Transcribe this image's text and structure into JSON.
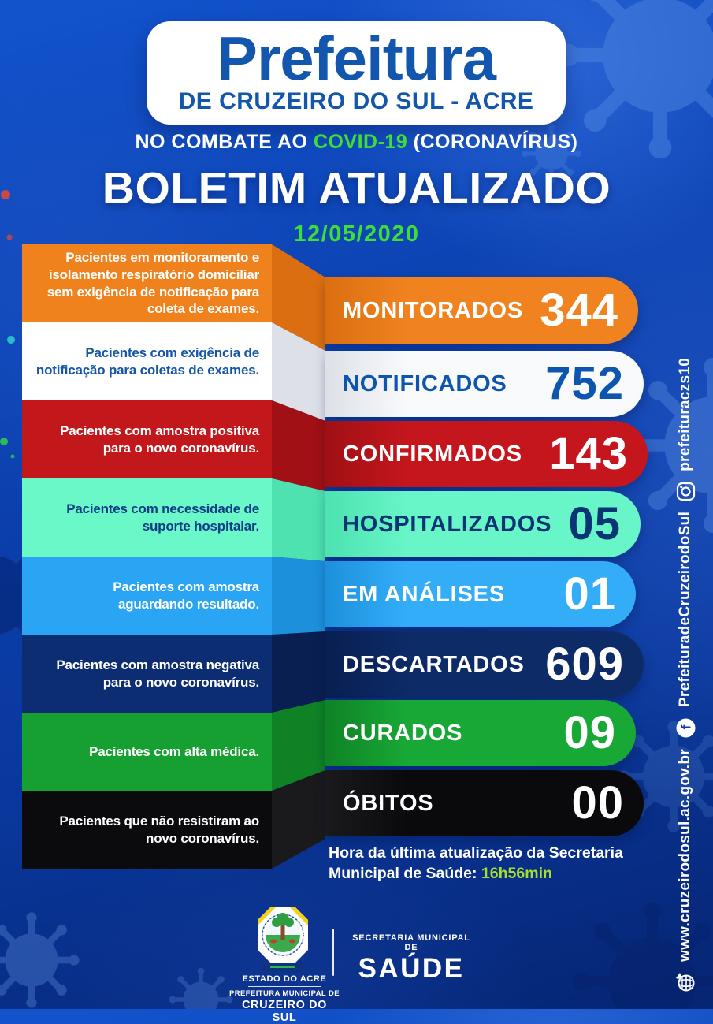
{
  "header": {
    "title": "Prefeitura",
    "subtitle": "DE CRUZEIRO DO SUL - ACRE",
    "tagline_prefix": "NO COMBATE AO ",
    "tagline_highlight": "COVID-19",
    "tagline_suffix": " (CORONAVÍRUS)",
    "bulletin_title": "BOLETIM ATUALIZADO",
    "date": "12/05/2020"
  },
  "rows": [
    {
      "description": "Pacientes em monitoramento e isolamento respiratório domiciliar sem exigência de notificação para coleta de exames.",
      "label": "MONITORADOS",
      "value": "344",
      "box_bg": "#F0821E",
      "box_text": "#FFFFFF",
      "fold_bg": "#DB6E10",
      "pill_bg": "#F0831F",
      "pill_text": "#FFFFFF"
    },
    {
      "description": "Pacientes com exigência de notificação para coletas de exames.",
      "label": "NOTIFICADOS",
      "value": "752",
      "box_bg": "#FFFFFF",
      "box_text": "#1456A8",
      "fold_bg": "#DDE1E7",
      "pill_bg": "#F9FAFC",
      "pill_text": "#0D55AF"
    },
    {
      "description": "Pacientes com amostra positiva para o novo coronavírus.",
      "label": "CONFIRMADOS",
      "value": "143",
      "box_bg": "#C2171B",
      "box_text": "#FFFFFF",
      "fold_bg": "#A01014",
      "pill_bg": "#C5161D",
      "pill_text": "#FFFFFF"
    },
    {
      "description": "Pacientes com necessidade de suporte hospitalar.",
      "label": "HOSPITALIZADOS",
      "value": "05",
      "box_bg": "#6BF8C9",
      "box_text": "#0B3C86",
      "fold_bg": "#4DE2B0",
      "pill_bg": "#68F5C7",
      "pill_text": "#0A3575"
    },
    {
      "description": "Pacientes com amostra aguardando resultado.",
      "label": "EM ANÁLISES",
      "value": "01",
      "box_bg": "#2AA5F3",
      "box_text": "#FFFFFF",
      "fold_bg": "#1D90DC",
      "pill_bg": "#33ADF8",
      "pill_text": "#FFFFFF"
    },
    {
      "description": "Pacientes com amostra negativa para o novo coronavírus.",
      "label": "DESCARTADOS",
      "value": "609",
      "box_bg": "#0D2D72",
      "box_text": "#FFFFFF",
      "fold_bg": "#091F52",
      "pill_bg": "#0D2B66",
      "pill_text": "#FFFFFF"
    },
    {
      "description": "Pacientes com alta médica.",
      "label": "CURADOS",
      "value": "09",
      "box_bg": "#17A032",
      "box_text": "#FFFFFF",
      "fold_bg": "#0F8226",
      "pill_bg": "#18A835",
      "pill_text": "#FFFFFF"
    },
    {
      "description": "Pacientes que não resistiram ao novo coronavírus.",
      "label": "ÓBITOS",
      "value": "00",
      "box_bg": "#0B0B0D",
      "box_text": "#FFFFFF",
      "fold_bg": "#1A1A1D",
      "pill_bg": "#0A0A0C",
      "pill_text": "#FFFFFF"
    }
  ],
  "update_note": {
    "prefix": "Hora da última atualização da Secretaria Municipal de Saúde: ",
    "time": "16h56min"
  },
  "footer": {
    "crest_caption_1": "ESTADO DO ACRE",
    "crest_caption_2": "PREFEITURA MUNICIPAL DE",
    "crest_caption_3": "CRUZEIRO DO SUL",
    "secretariat_line1": "SECRETARIA MUNICIPAL DE",
    "secretariat_line2": "SAÚDE"
  },
  "sidebar": {
    "website": "www.cruzeirodosul.ac.gov.br",
    "facebook_handle": "PrefeituradeCruzeirodoSul",
    "instagram_handle": "prefeituraczs10"
  },
  "colors": {
    "header_blue": "#1356AE",
    "accent_green": "#3FDE36",
    "time_green": "#A6DE2F",
    "background_blue": "#0B3EAC"
  }
}
